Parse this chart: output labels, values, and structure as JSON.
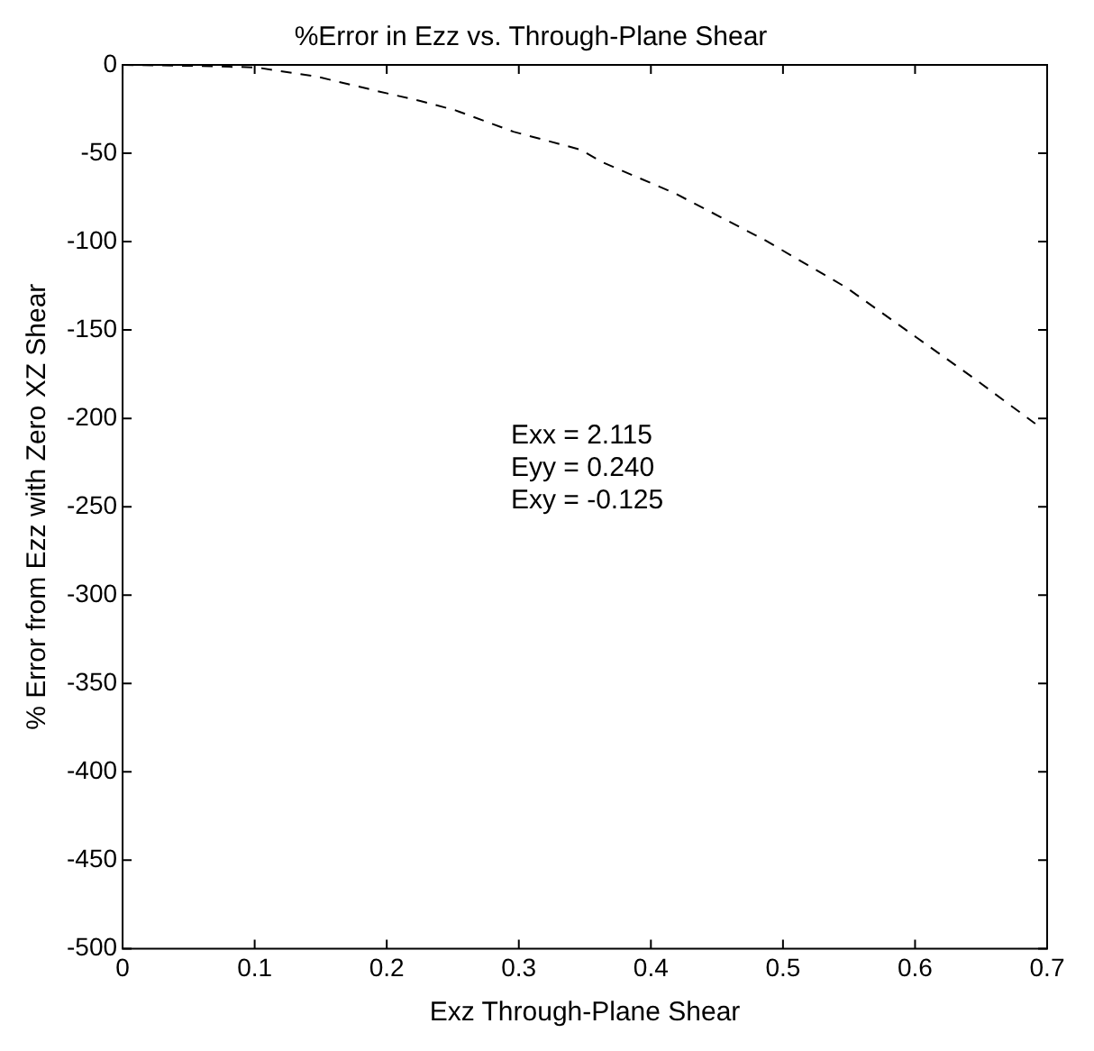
{
  "chart_data": {
    "type": "line",
    "title": "%Error in Ezz vs. Through-Plane Shear",
    "xlabel": "Exz Through-Plane Shear",
    "ylabel": "% Error from Ezz with Zero XZ Shear",
    "x": [
      0,
      0.05,
      0.101,
      0.147,
      0.194,
      0.226,
      0.252,
      0.296,
      0.347,
      0.363,
      0.418,
      0.486,
      0.548,
      0.644,
      0.691
    ],
    "series": [
      {
        "color": "#000000",
        "values": [
          0,
          -0.5,
          -1.4,
          -6.6,
          -15,
          -20.5,
          -25.7,
          -37.8,
          -48,
          -55,
          -72.6,
          -99,
          -126,
          -177,
          -203
        ]
      }
    ],
    "xlim": [
      0,
      0.7
    ],
    "xticks": [
      0,
      0.1,
      0.2,
      0.3,
      0.4,
      0.5,
      0.6,
      0.7
    ],
    "ylim": [
      -500,
      0
    ],
    "yticks": [
      -500,
      -450,
      -400,
      -350,
      -300,
      -250,
      -200,
      -150,
      -100,
      -50,
      0
    ],
    "line_style": "dashed",
    "marker": "none",
    "grid": false,
    "legend": false,
    "annotations": [
      "Exx = 2.115",
      "Eyy = 0.240",
      "Exy = -0.125"
    ]
  }
}
